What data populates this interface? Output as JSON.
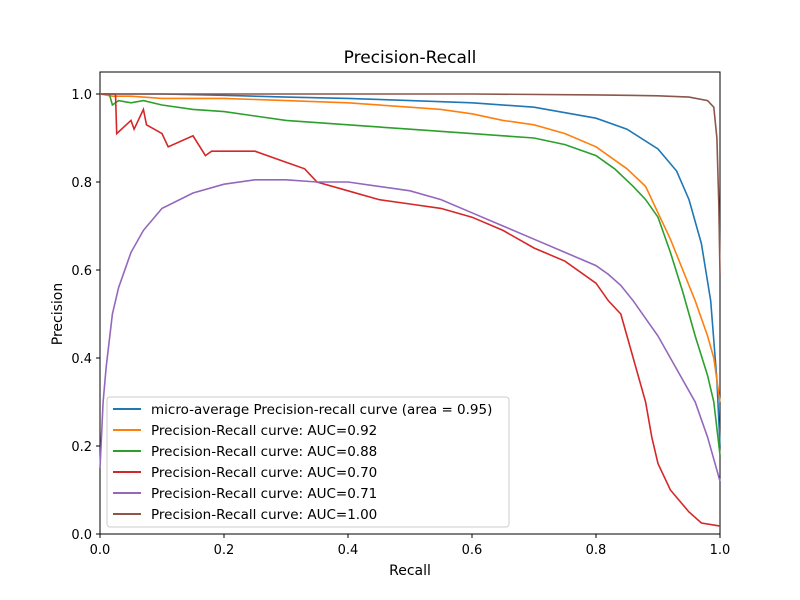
{
  "chart_data": {
    "type": "line",
    "title": "Precision-Recall",
    "xlabel": "Recall",
    "ylabel": "Precision",
    "xlim": [
      0.0,
      1.0
    ],
    "ylim": [
      0.0,
      1.05
    ],
    "xticks": [
      "0.0",
      "0.2",
      "0.4",
      "0.6",
      "0.8",
      "1.0"
    ],
    "yticks": [
      "0.0",
      "0.2",
      "0.4",
      "0.6",
      "0.8",
      "1.0"
    ],
    "grid": false,
    "legend_position": "lower-left",
    "series": [
      {
        "name": "micro-average Precision-recall curve (area = 0.95)",
        "color": "#1f77b4",
        "x": [
          0.0,
          0.1,
          0.2,
          0.3,
          0.4,
          0.5,
          0.6,
          0.7,
          0.8,
          0.85,
          0.9,
          0.93,
          0.95,
          0.97,
          0.985,
          0.995,
          1.0
        ],
        "y": [
          1.0,
          1.0,
          0.997,
          0.993,
          0.99,
          0.985,
          0.98,
          0.97,
          0.945,
          0.92,
          0.875,
          0.825,
          0.76,
          0.66,
          0.53,
          0.35,
          0.2
        ]
      },
      {
        "name": "Precision-Recall curve: AUC=0.92",
        "color": "#ff7f0e",
        "x": [
          0.0,
          0.02,
          0.05,
          0.1,
          0.2,
          0.3,
          0.4,
          0.5,
          0.55,
          0.6,
          0.65,
          0.7,
          0.75,
          0.8,
          0.85,
          0.88,
          0.9,
          0.92,
          0.94,
          0.96,
          0.98,
          0.99,
          1.0
        ],
        "y": [
          1.0,
          0.995,
          0.995,
          0.99,
          0.99,
          0.985,
          0.98,
          0.97,
          0.965,
          0.955,
          0.94,
          0.93,
          0.91,
          0.88,
          0.83,
          0.79,
          0.73,
          0.67,
          0.6,
          0.53,
          0.45,
          0.4,
          0.3
        ]
      },
      {
        "name": "Precision-Recall curve: AUC=0.88",
        "color": "#2ca02c",
        "x": [
          0.0,
          0.015,
          0.02,
          0.03,
          0.05,
          0.07,
          0.1,
          0.15,
          0.2,
          0.25,
          0.3,
          0.4,
          0.5,
          0.6,
          0.65,
          0.7,
          0.75,
          0.8,
          0.83,
          0.86,
          0.88,
          0.9,
          0.92,
          0.94,
          0.96,
          0.98,
          0.99,
          1.0
        ],
        "y": [
          1.0,
          1.0,
          0.975,
          0.985,
          0.98,
          0.985,
          0.975,
          0.965,
          0.96,
          0.95,
          0.94,
          0.93,
          0.92,
          0.91,
          0.905,
          0.9,
          0.885,
          0.86,
          0.83,
          0.79,
          0.76,
          0.72,
          0.64,
          0.55,
          0.45,
          0.36,
          0.3,
          0.18
        ]
      },
      {
        "name": "Precision-Recall curve: AUC=0.70",
        "color": "#d62728",
        "x": [
          0.0,
          0.025,
          0.027,
          0.05,
          0.055,
          0.07,
          0.075,
          0.1,
          0.11,
          0.15,
          0.17,
          0.18,
          0.2,
          0.25,
          0.3,
          0.33,
          0.35,
          0.4,
          0.45,
          0.5,
          0.55,
          0.6,
          0.65,
          0.7,
          0.75,
          0.8,
          0.82,
          0.84,
          0.85,
          0.86,
          0.87,
          0.88,
          0.89,
          0.9,
          0.92,
          0.95,
          0.97,
          1.0
        ],
        "y": [
          1.0,
          1.0,
          0.91,
          0.94,
          0.92,
          0.965,
          0.93,
          0.91,
          0.88,
          0.905,
          0.86,
          0.87,
          0.87,
          0.87,
          0.845,
          0.83,
          0.8,
          0.78,
          0.76,
          0.75,
          0.74,
          0.72,
          0.69,
          0.65,
          0.62,
          0.57,
          0.53,
          0.5,
          0.45,
          0.4,
          0.35,
          0.3,
          0.22,
          0.16,
          0.1,
          0.05,
          0.025,
          0.018
        ]
      },
      {
        "name": "Precision-Recall curve: AUC=0.71",
        "color": "#9467bd",
        "x": [
          0.0,
          0.005,
          0.01,
          0.02,
          0.03,
          0.05,
          0.07,
          0.1,
          0.15,
          0.2,
          0.25,
          0.3,
          0.35,
          0.4,
          0.45,
          0.5,
          0.55,
          0.6,
          0.65,
          0.7,
          0.75,
          0.8,
          0.82,
          0.84,
          0.86,
          0.88,
          0.9,
          0.92,
          0.94,
          0.96,
          0.98,
          1.0
        ],
        "y": [
          0.15,
          0.3,
          0.38,
          0.5,
          0.56,
          0.64,
          0.69,
          0.74,
          0.775,
          0.795,
          0.805,
          0.805,
          0.8,
          0.8,
          0.79,
          0.78,
          0.76,
          0.73,
          0.7,
          0.67,
          0.64,
          0.61,
          0.59,
          0.565,
          0.53,
          0.49,
          0.45,
          0.4,
          0.35,
          0.3,
          0.22,
          0.12
        ]
      },
      {
        "name": "Precision-Recall curve: AUC=1.00",
        "color": "#8c564b",
        "x": [
          0.0,
          0.2,
          0.4,
          0.6,
          0.8,
          0.9,
          0.95,
          0.98,
          0.99,
          0.995,
          0.998,
          1.0
        ],
        "y": [
          1.0,
          1.0,
          1.0,
          1.0,
          0.998,
          0.996,
          0.993,
          0.985,
          0.97,
          0.9,
          0.75,
          0.59
        ]
      }
    ]
  }
}
